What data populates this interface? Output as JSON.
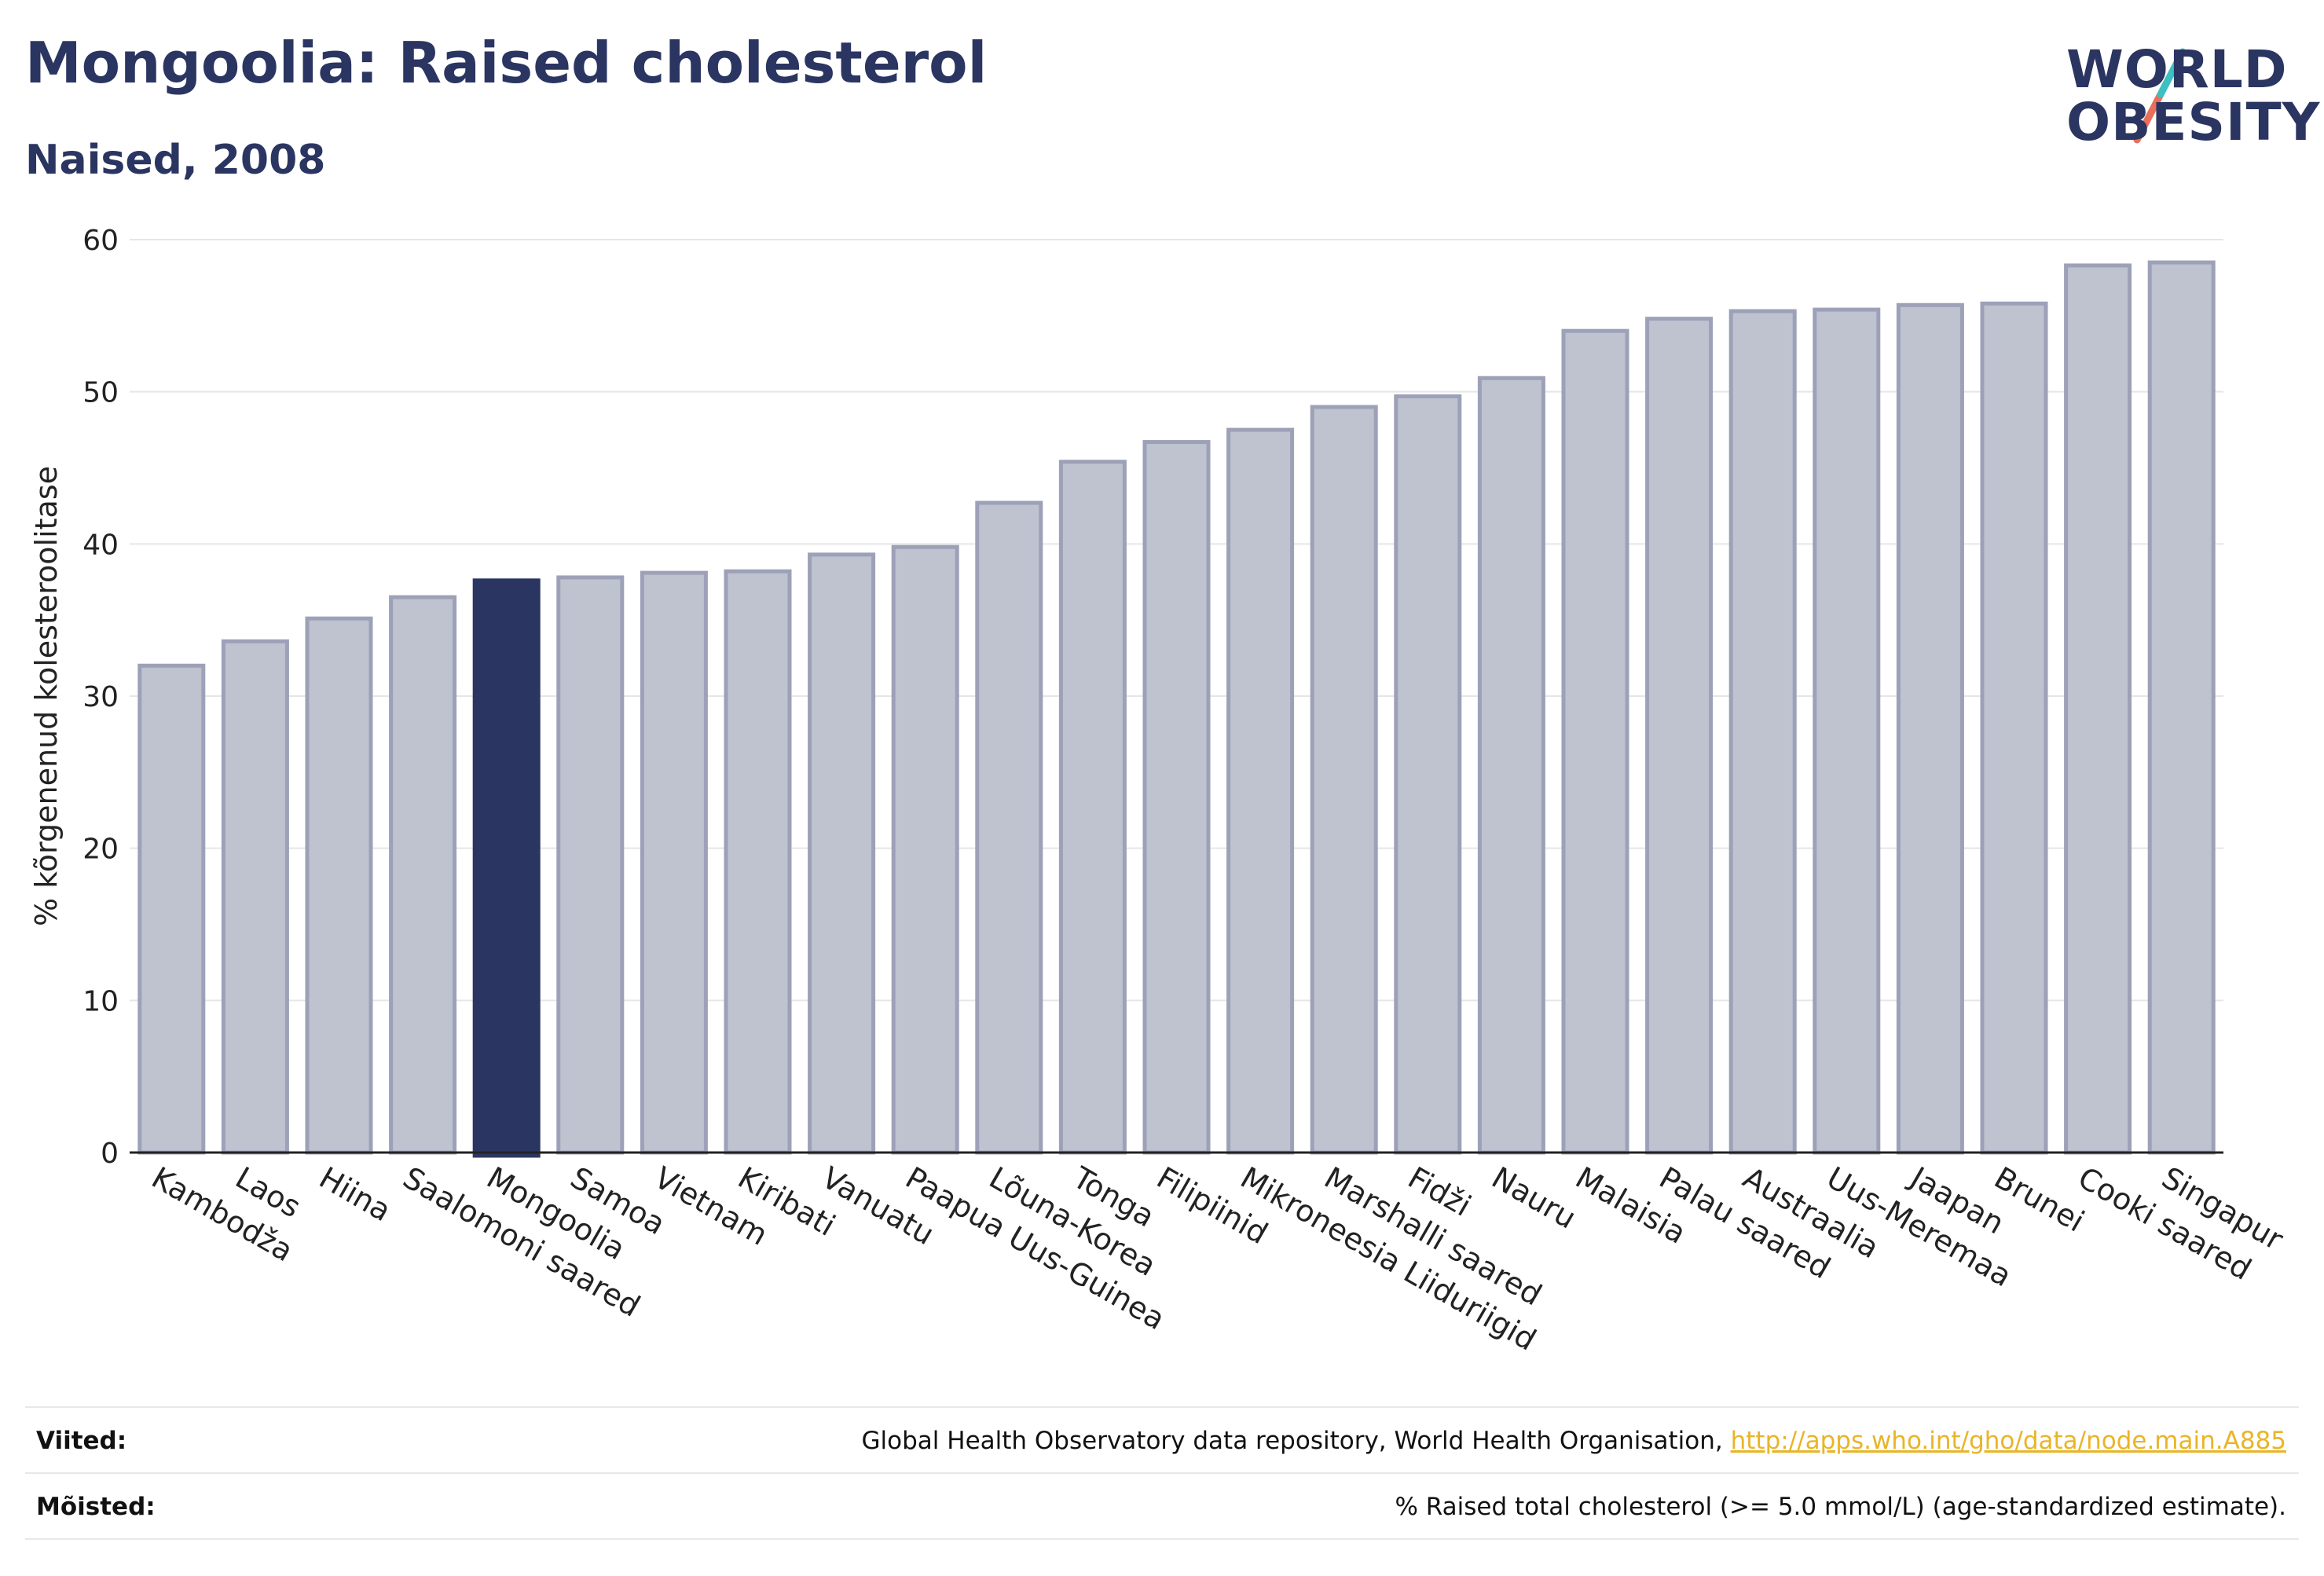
{
  "header": {
    "title": "Mongoolia: Raised cholesterol",
    "subtitle": "Naised, 2008",
    "logo_line1": "WORLD",
    "logo_line2": "OBESITY"
  },
  "colors": {
    "bar": "#bfc2cf",
    "bar_border": "#9da1b8",
    "highlight": "#2b3561",
    "text": "#2b3561",
    "link": "#e9b428",
    "logo_slash_top": "#3cc0c2",
    "logo_slash_bottom": "#e8705b"
  },
  "chart_data": {
    "type": "bar",
    "title": "Mongoolia: Raised cholesterol",
    "subtitle": "Naised, 2008",
    "xlabel": "",
    "ylabel": "% kõrgenenud kolesteroolitase",
    "ylim": [
      0,
      60
    ],
    "yticks": [
      0,
      10,
      20,
      30,
      40,
      50,
      60
    ],
    "grid": true,
    "highlight_category": "Mongoolia",
    "categories": [
      "Kambodža",
      "Laos",
      "Hiina",
      "Saalomoni saared",
      "Mongoolia",
      "Samoa",
      "Vietnam",
      "Kiribati",
      "Vanuatu",
      "Paapua Uus-Guinea",
      "Lõuna-Korea",
      "Tonga",
      "Filipiinid",
      "Mikroneesia Liiduriigid",
      "Marshalli saared",
      "Fidži",
      "Nauru",
      "Malaisia",
      "Palau saared",
      "Austraalia",
      "Uus-Meremaa",
      "Jaapan",
      "Brunei",
      "Cooki saared",
      "Singapur"
    ],
    "values": [
      32.0,
      33.6,
      35.1,
      36.5,
      37.6,
      37.8,
      38.1,
      38.2,
      39.3,
      39.8,
      42.7,
      45.4,
      46.7,
      47.5,
      49.0,
      49.7,
      50.9,
      54.0,
      54.8,
      55.3,
      55.4,
      55.7,
      55.8,
      58.3,
      58.5
    ]
  },
  "footer": {
    "sources_label": "Viited:",
    "sources_text": "Global Health Observatory data repository, World Health Organisation, ",
    "sources_link": "http://apps.who.int/gho/data/node.main.A885",
    "definitions_label": "Mõisted:",
    "definitions_text": "% Raised total cholesterol (>= 5.0 mmol/L) (age-standardized estimate)."
  }
}
